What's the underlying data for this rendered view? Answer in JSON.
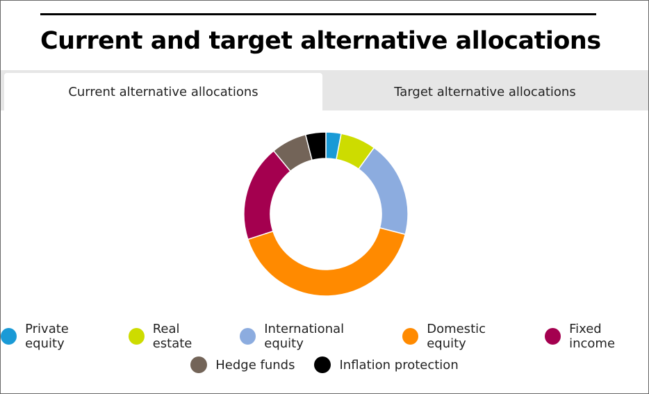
{
  "header": {
    "title": "Current and target alternative allocations"
  },
  "tabs": [
    {
      "label": "Current alternative allocations",
      "active": true
    },
    {
      "label": "Target alternative allocations",
      "active": false
    }
  ],
  "chart_data": {
    "type": "donut",
    "categories": [
      "Private equity",
      "Real estate",
      "International equity",
      "Domestic equity",
      "Fixed income",
      "Hedge funds",
      "Inflation protection"
    ],
    "values": [
      3,
      7,
      19,
      41,
      19,
      7,
      4
    ],
    "colors": [
      "#1a9ad6",
      "#cddc00",
      "#8cacdf",
      "#ff8a00",
      "#a4004f",
      "#736458",
      "#000000"
    ]
  }
}
